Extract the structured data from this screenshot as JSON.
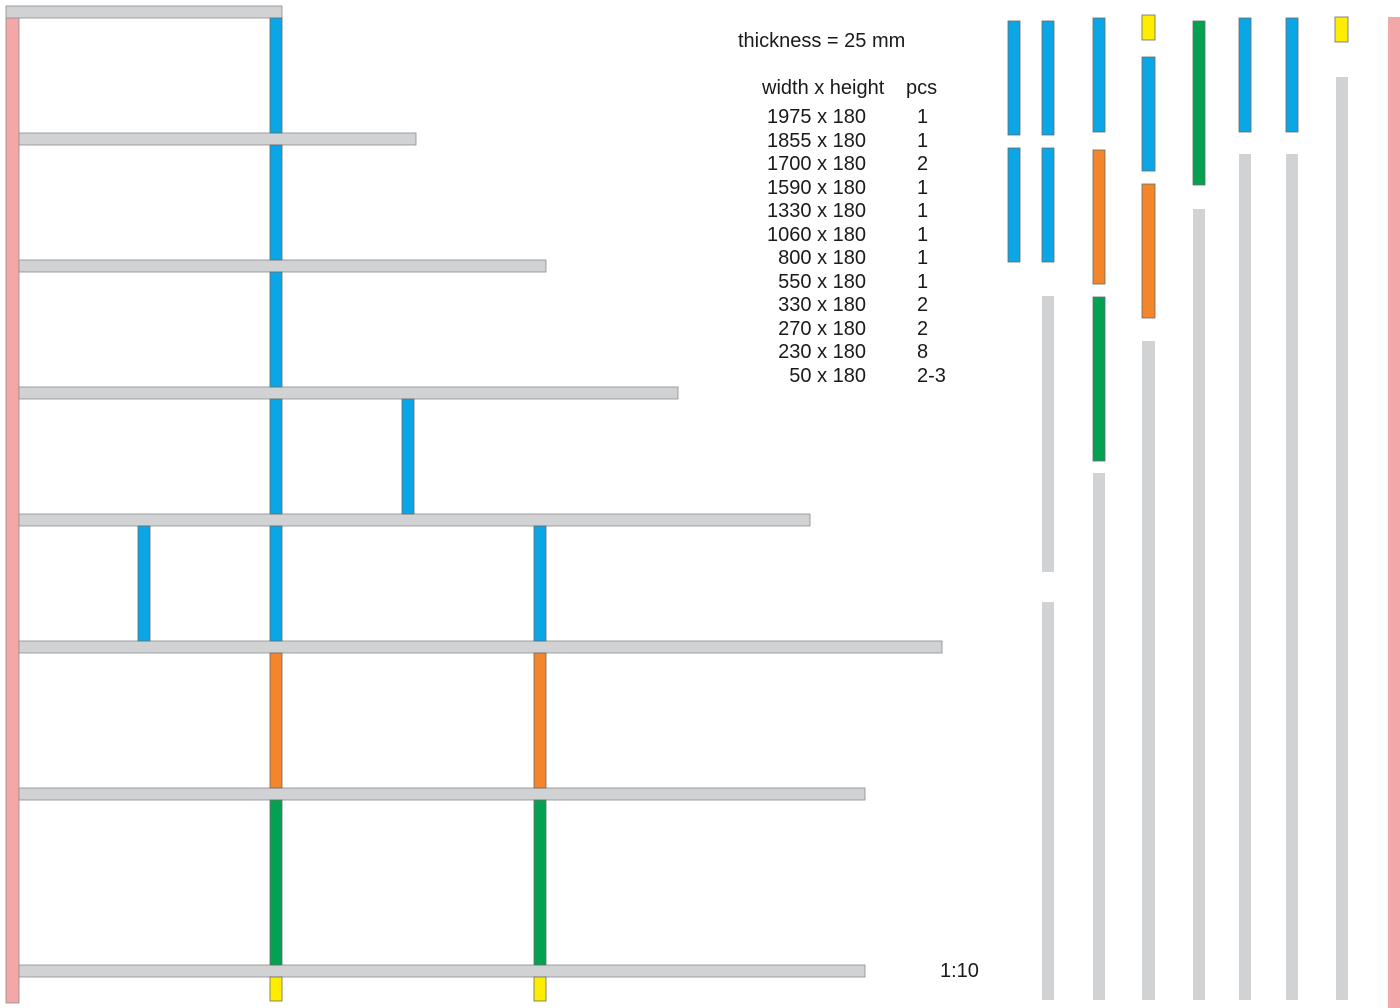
{
  "title_note": "thickness = 25 mm",
  "table": {
    "col_size_header": "width x height",
    "col_pcs_header": "pcs",
    "rows": [
      {
        "size": "1975 x 180",
        "pcs": "1"
      },
      {
        "size": "1855 x 180",
        "pcs": "1"
      },
      {
        "size": "1700 x 180",
        "pcs": "2"
      },
      {
        "size": "1590 x 180",
        "pcs": "1"
      },
      {
        "size": "1330 x 180",
        "pcs": "1"
      },
      {
        "size": "1060 x 180",
        "pcs": "1"
      },
      {
        "size": "800 x 180",
        "pcs": "1"
      },
      {
        "size": "550 x 180",
        "pcs": "1"
      },
      {
        "size": "330 x 180",
        "pcs": "2"
      },
      {
        "size": "270 x 180",
        "pcs": "2"
      },
      {
        "size": "230 x 180",
        "pcs": "8"
      },
      {
        "size": "50 x 180",
        "pcs": "2-3"
      }
    ]
  },
  "scale": "1:10",
  "colors": {
    "wall": "#f4a7a8",
    "shelf": "#d1d2d4",
    "shelf_stroke": "#8c8c8c",
    "spacer_blue": "#0aa6e6",
    "spacer_orange": "#f3852a",
    "spacer_green": "#04a152",
    "spacer_yellow": "#ffed00",
    "divider_stroke": "#6a6a6a"
  }
}
